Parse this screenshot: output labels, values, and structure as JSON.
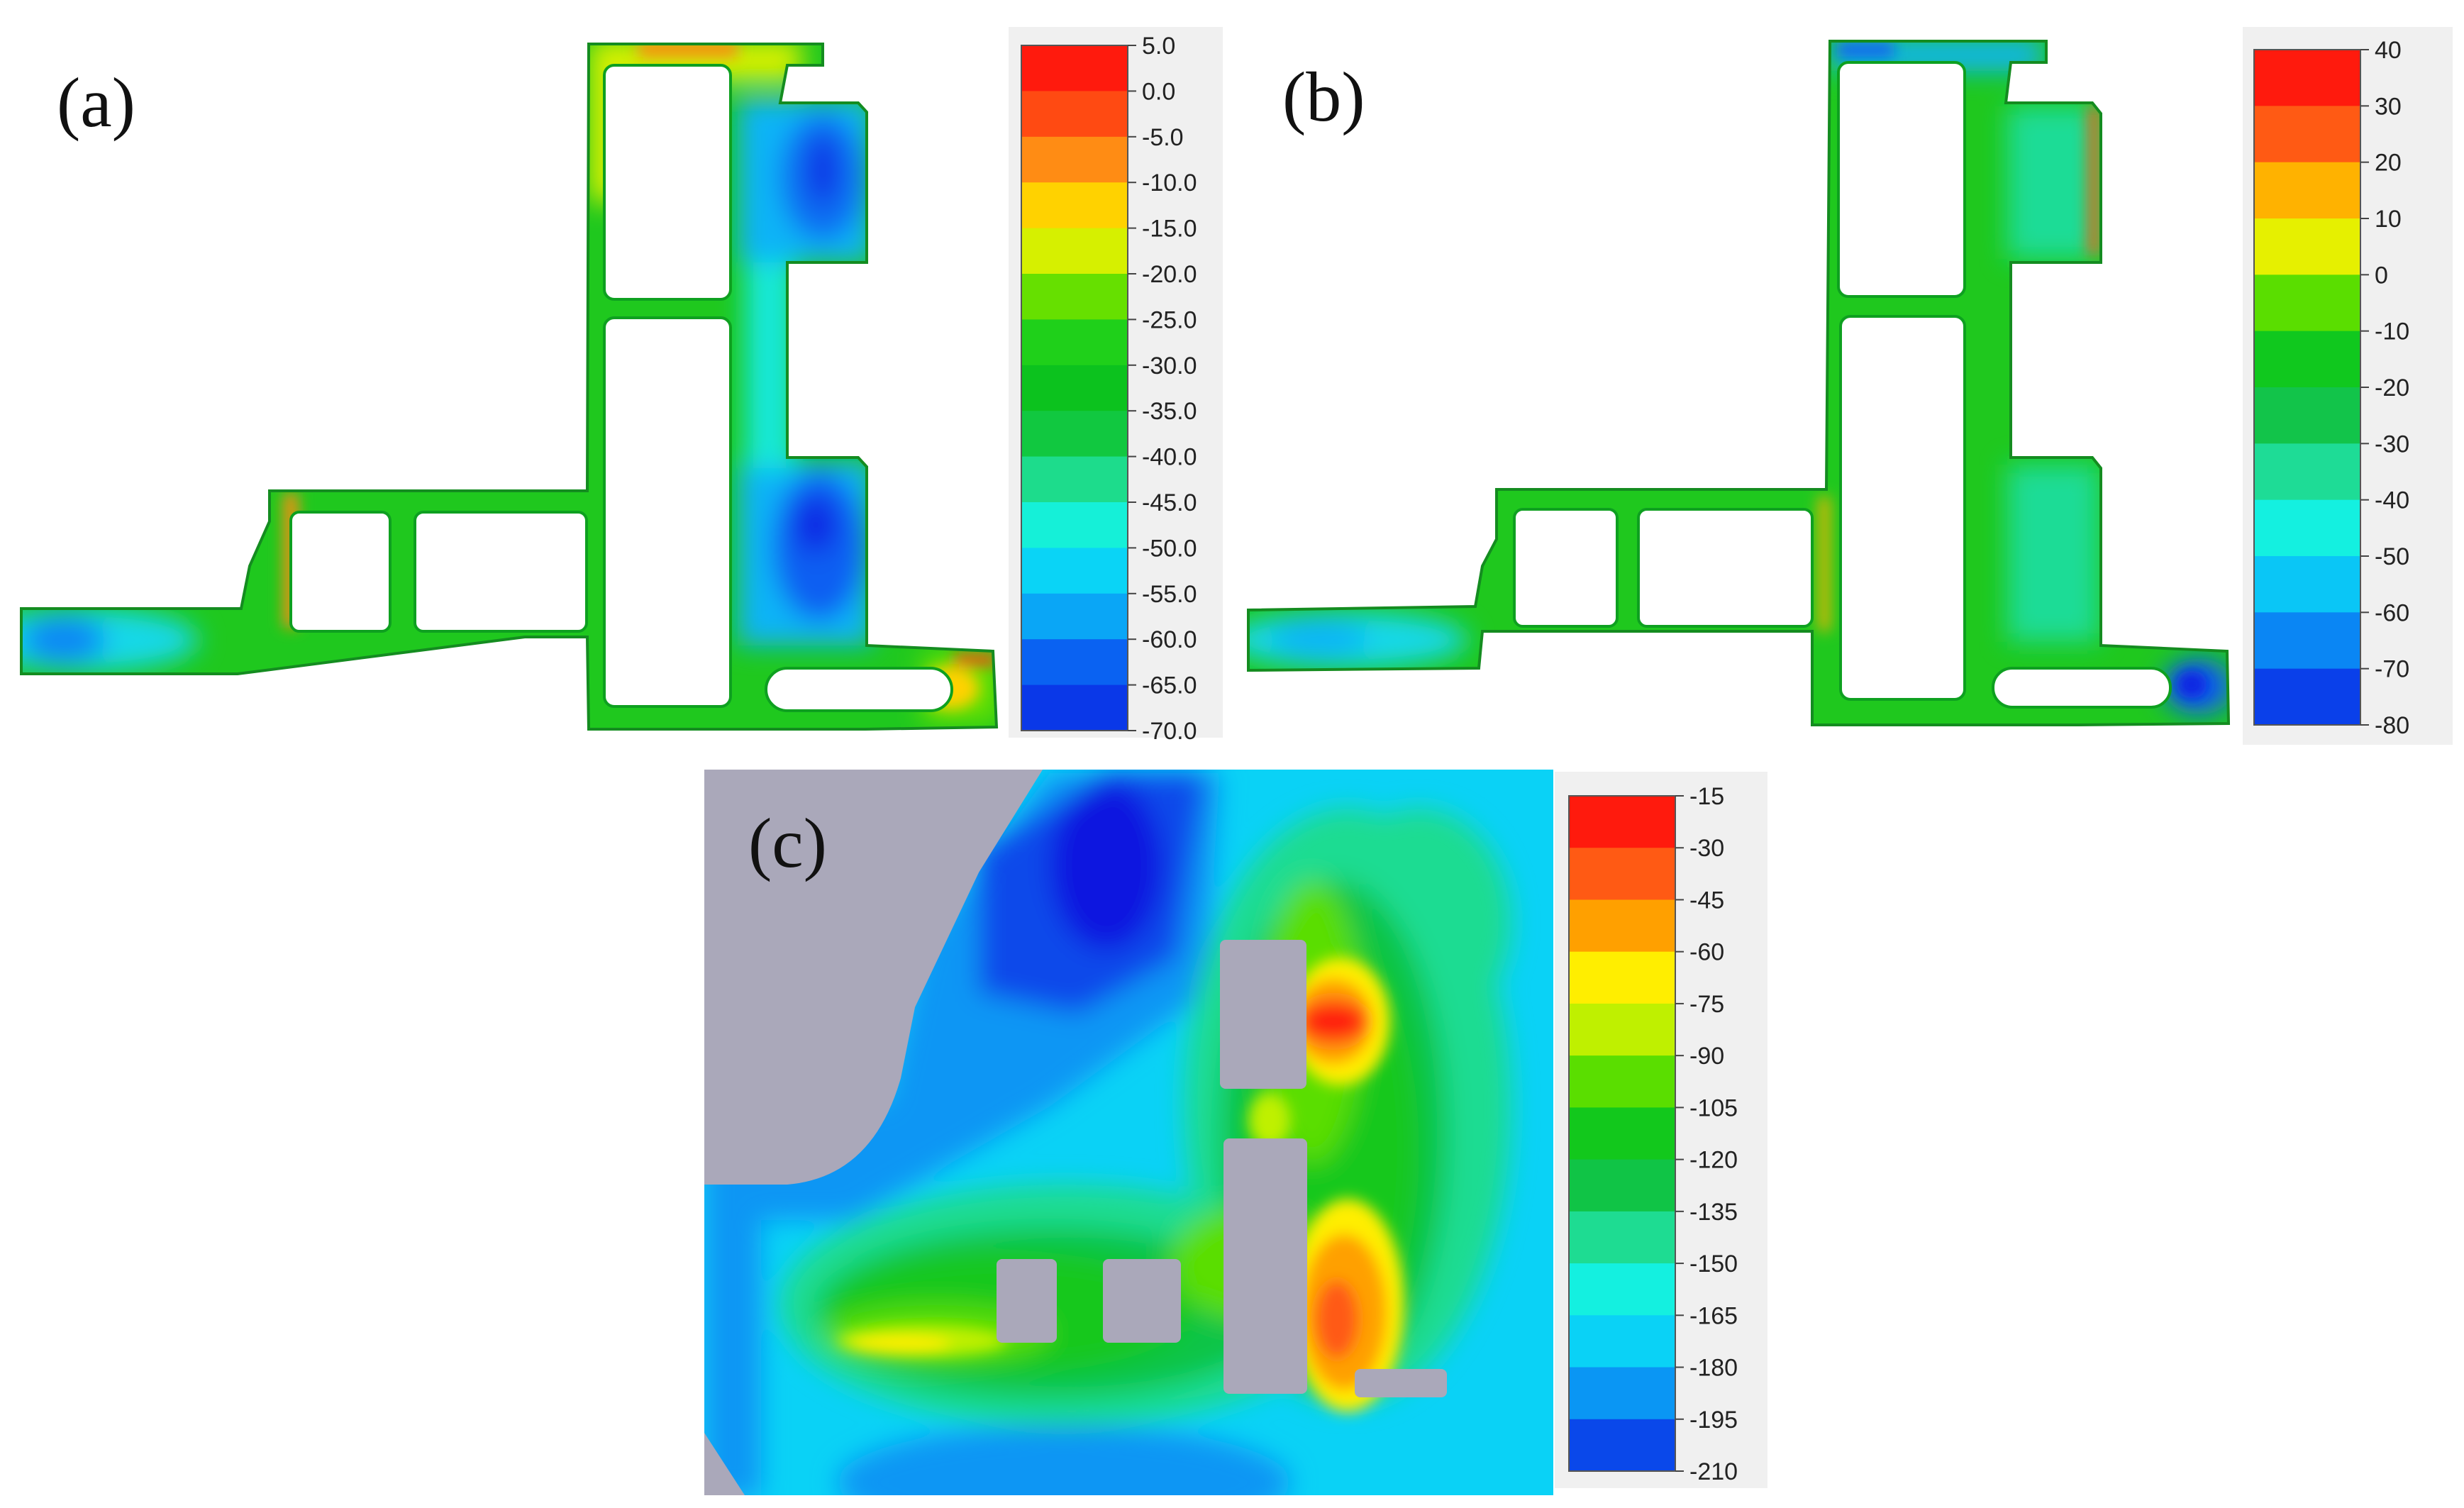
{
  "panels": [
    {
      "label": "(a)",
      "scale": [
        {
          "value": "5.0",
          "color": "#ff1a0d"
        },
        {
          "value": "0.0",
          "color": "#ff4a12"
        },
        {
          "value": "-5.0",
          "color": "#ff8c14"
        },
        {
          "value": "-10.0",
          "color": "#ffd200"
        },
        {
          "value": "-15.0",
          "color": "#d6f000"
        },
        {
          "value": "-20.0",
          "color": "#66e000"
        },
        {
          "value": "-25.0",
          "color": "#1fd01a"
        },
        {
          "value": "-30.0",
          "color": "#0cc21e"
        },
        {
          "value": "-35.0",
          "color": "#11c840"
        },
        {
          "value": "-40.0",
          "color": "#1ddc8c"
        },
        {
          "value": "-45.0",
          "color": "#15f0d8"
        },
        {
          "value": "-50.0",
          "color": "#0ad4f6"
        },
        {
          "value": "-55.0",
          "color": "#0aa6f6"
        },
        {
          "value": "-60.0",
          "color": "#0a62f2"
        },
        {
          "value": "-65.0",
          "color": "#0a38e8"
        },
        {
          "value": "-70.0",
          "color": "#0a14e0"
        }
      ]
    },
    {
      "label": "(b)",
      "scale": [
        {
          "value": "40",
          "color": "#ff1a0d"
        },
        {
          "value": "30",
          "color": "#ff5a14"
        },
        {
          "value": "20",
          "color": "#ffb200"
        },
        {
          "value": "10",
          "color": "#e6f000"
        },
        {
          "value": "0",
          "color": "#5ade00"
        },
        {
          "value": "-10",
          "color": "#10c81e"
        },
        {
          "value": "-20",
          "color": "#12c44a"
        },
        {
          "value": "-30",
          "color": "#1edc96"
        },
        {
          "value": "-40",
          "color": "#14f0e0"
        },
        {
          "value": "-50",
          "color": "#0ac6f6"
        },
        {
          "value": "-60",
          "color": "#0a86f4"
        },
        {
          "value": "-70",
          "color": "#0a40ea"
        },
        {
          "value": "-80",
          "color": "#0a14e0"
        }
      ]
    },
    {
      "label": "(c)",
      "scale": [
        {
          "value": "-15",
          "color": "#ff1a0d"
        },
        {
          "value": "-30",
          "color": "#ff5a14"
        },
        {
          "value": "-45",
          "color": "#ffa000"
        },
        {
          "value": "-60",
          "color": "#ffee00"
        },
        {
          "value": "-75",
          "color": "#bff000"
        },
        {
          "value": "-90",
          "color": "#5ade00"
        },
        {
          "value": "-105",
          "color": "#12c81c"
        },
        {
          "value": "-120",
          "color": "#10c446"
        },
        {
          "value": "-135",
          "color": "#1edc92"
        },
        {
          "value": "-150",
          "color": "#14f0e0"
        },
        {
          "value": "-165",
          "color": "#0ad2f6"
        },
        {
          "value": "-180",
          "color": "#0a96f4"
        },
        {
          "value": "-195",
          "color": "#0a48ea"
        },
        {
          "value": "-210",
          "color": "#0a14e0"
        }
      ]
    }
  ],
  "colors": {
    "green": "#1fc81e",
    "cyan": "#14e8d8",
    "lightblue": "#0ab4f6",
    "blue": "#0a5ef2",
    "deepblue": "#0a20e2",
    "yellow": "#ffd200",
    "orange": "#ff8c14",
    "red": "#ff2010",
    "gray": "#aaa8ba"
  }
}
